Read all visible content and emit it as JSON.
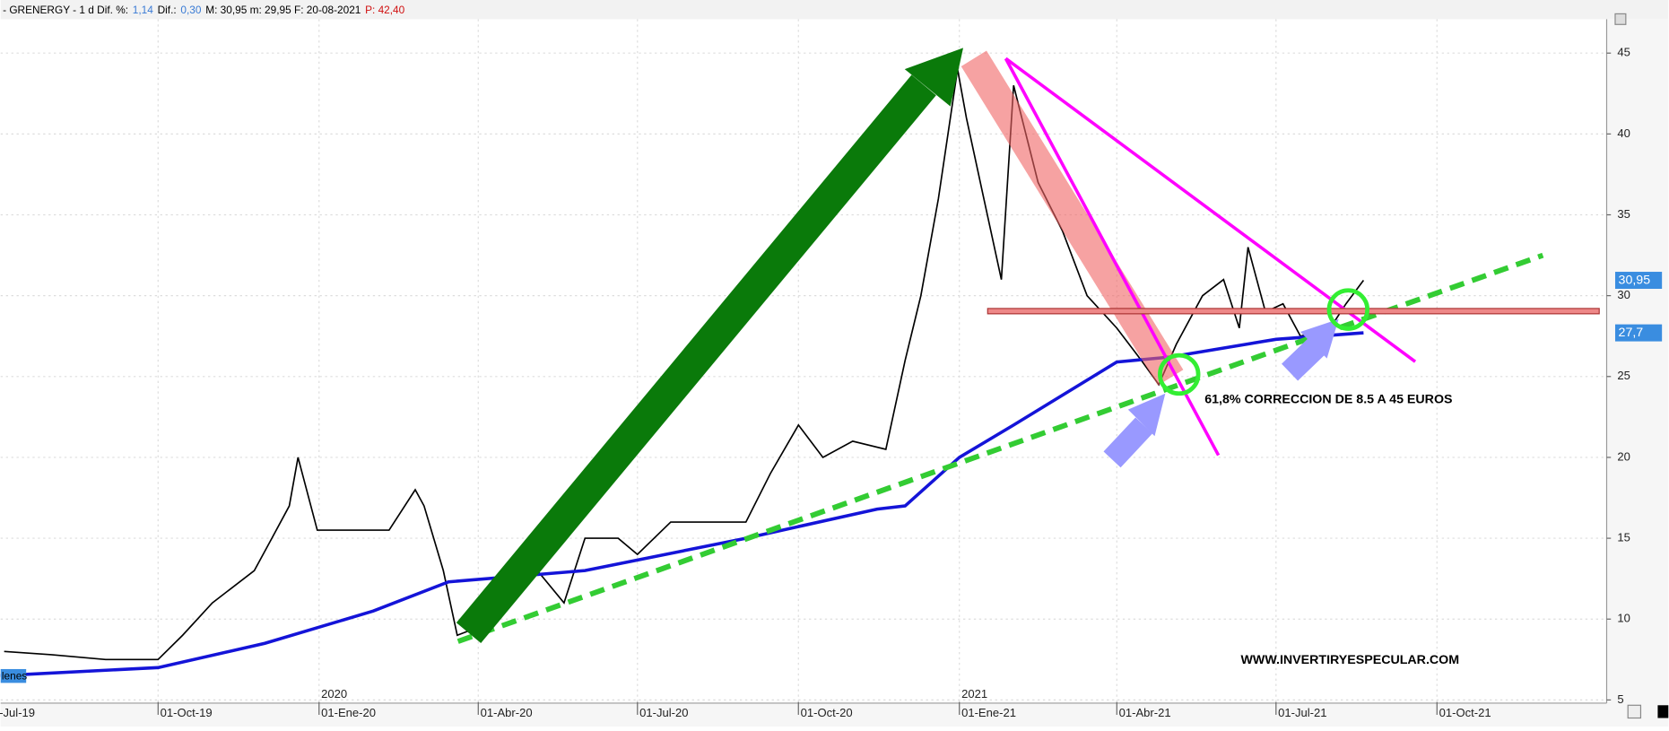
{
  "chart_data": {
    "type": "line",
    "header": [
      {
        "text": "- GRENERGY -  1 d  Dif. %:",
        "color": "#000000"
      },
      {
        "text": "1,14",
        "color": "#3a7bd5"
      },
      {
        "text": "Dif.:",
        "color": "#000000"
      },
      {
        "text": "0,30",
        "color": "#3a7bd5"
      },
      {
        "text": "M: 30,95  m: 29,95  F: 20-08-2021",
        "color": "#000000"
      },
      {
        "text": "P: 42,40",
        "color": "#d01010"
      }
    ],
    "annotations": [
      "61,8% CORRECCION DE  8.5 A 45 EUROS",
      "WWW.INVERTIRYESPECULAR.COM",
      "lenes"
    ],
    "price_tags": [
      {
        "value": 30.95,
        "label": "30,95"
      },
      {
        "value": 27.7,
        "label": "27,7"
      }
    ],
    "xlim": [
      "2019-07-03",
      "2022-01-06"
    ],
    "xticks": [
      {
        "value": "2019-07-01",
        "label": "-Jul-19"
      },
      {
        "value": "2019-10-01",
        "label": "01-Oct-19"
      },
      {
        "value": "2020-01-01",
        "label": "01-Ene-20"
      },
      {
        "value": "2020-04-01",
        "label": "01-Abr-20"
      },
      {
        "value": "2020-07-01",
        "label": "01-Jul-20"
      },
      {
        "value": "2020-10-01",
        "label": "01-Oct-20"
      },
      {
        "value": "2021-01-01",
        "label": "01-Ene-21"
      },
      {
        "value": "2021-04-01",
        "label": "01-Abr-21"
      },
      {
        "value": "2021-07-01",
        "label": "01-Jul-21"
      },
      {
        "value": "2021-10-01",
        "label": "01-Oct-21"
      }
    ],
    "year_ticks": [
      {
        "value": "2020-01-01",
        "label": "2020"
      },
      {
        "value": "2021-01-01",
        "label": "2021"
      }
    ],
    "ylim": [
      4.87,
      47.1
    ],
    "yticks": [
      5,
      10,
      15,
      20,
      25,
      30,
      35,
      40,
      45
    ],
    "grid": true,
    "series": [
      {
        "color": "#000000",
        "x": [
          "2019-07-05",
          "2019-08-01",
          "2019-09-01",
          "2019-10-01",
          "2019-10-15",
          "2019-11-01",
          "2019-11-25",
          "2019-12-05",
          "2019-12-15",
          "2019-12-20",
          "2019-12-31",
          "2020-01-20",
          "2020-02-10",
          "2020-02-25",
          "2020-03-01",
          "2020-03-12",
          "2020-03-20",
          "2020-04-01",
          "2020-04-20",
          "2020-05-01",
          "2020-05-20",
          "2020-06-01",
          "2020-06-20",
          "2020-07-01",
          "2020-07-20",
          "2020-08-10",
          "2020-09-01",
          "2020-09-15",
          "2020-10-01",
          "2020-10-15",
          "2020-11-01",
          "2020-11-20",
          "2020-12-01",
          "2020-12-10",
          "2020-12-20",
          "2020-12-31",
          "2021-01-05",
          "2021-01-15",
          "2021-01-25",
          "2021-02-01",
          "2021-02-15",
          "2021-03-01",
          "2021-03-15",
          "2021-04-01",
          "2021-04-15",
          "2021-04-25",
          "2021-05-05",
          "2021-05-20",
          "2021-06-01",
          "2021-06-10",
          "2021-06-15",
          "2021-06-25",
          "2021-07-05",
          "2021-07-15",
          "2021-08-01",
          "2021-08-10",
          "2021-08-20"
        ],
        "values": [
          8,
          7.8,
          7.5,
          7.5,
          9,
          11,
          13,
          15,
          17,
          20,
          15.5,
          15.5,
          15.5,
          18,
          17,
          13,
          9,
          9.5,
          12,
          13.5,
          11,
          15,
          15,
          14,
          16,
          16,
          16,
          19,
          22,
          20,
          21,
          20.5,
          26,
          30,
          36,
          44,
          41,
          36,
          31,
          43,
          37,
          34,
          30,
          28,
          26,
          24.5,
          27,
          30,
          31,
          28,
          33,
          29,
          29.5,
          27.5,
          28,
          29.5,
          30.95
        ]
      },
      {
        "color": "#1414d8",
        "x": [
          "2019-07-03",
          "2019-10-01",
          "2019-12-01",
          "2020-02-01",
          "2020-03-15",
          "2020-06-01",
          "2020-09-01",
          "2020-11-15",
          "2020-12-01",
          "2021-01-01",
          "2021-02-01",
          "2021-04-01",
          "2021-05-01",
          "2021-07-01",
          "2021-08-20"
        ],
        "values": [
          6.5,
          7,
          8.5,
          10.5,
          12.3,
          13,
          15,
          16.8,
          17,
          20,
          22,
          25.9,
          26.2,
          27.3,
          27.7
        ]
      }
    ]
  }
}
